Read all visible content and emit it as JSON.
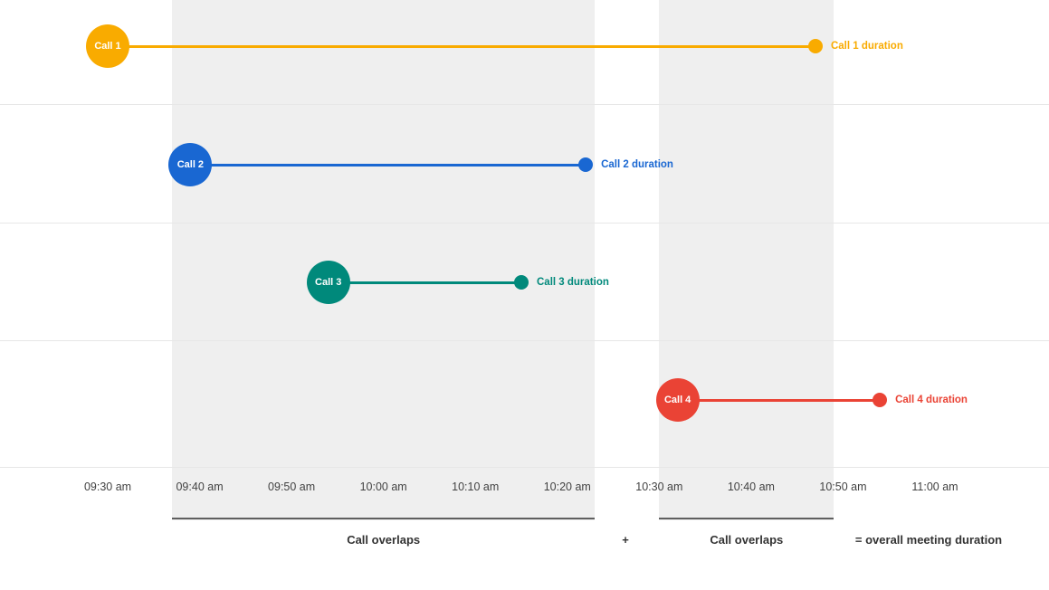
{
  "chart_data": {
    "type": "timeline",
    "x_axis": {
      "ticks": [
        "09:30 am",
        "09:40 am",
        "09:50 am",
        "10:00 am",
        "10:10 am",
        "10:20 am",
        "10:30 am",
        "10:40 am",
        "10:50 am",
        "11:00 am"
      ],
      "range": [
        "09:30 am",
        "11:00 am"
      ],
      "tick_interval_min": 10
    },
    "calls": [
      {
        "name": "Call 1",
        "duration_label": "Call 1 duration",
        "start": "09:30 am",
        "end": "10:47 am",
        "color": "#F9AB00"
      },
      {
        "name": "Call 2",
        "duration_label": "Call 2 duration",
        "start": "09:39 am",
        "end": "10:22 am",
        "color": "#1967D2"
      },
      {
        "name": "Call 3",
        "duration_label": "Call 3 duration",
        "start": "09:54 am",
        "end": "10:15 am",
        "color": "#00897B"
      },
      {
        "name": "Call 4",
        "duration_label": "Call 4 duration",
        "start": "10:32 am",
        "end": "10:54 am",
        "color": "#EA4335"
      }
    ],
    "overlap_regions": [
      {
        "label": "Call overlaps",
        "start": "09:37 am",
        "end": "10:23 am"
      },
      {
        "label": "Call overlaps",
        "start": "10:30 am",
        "end": "10:49 am"
      }
    ],
    "plus_label": "+",
    "overall_label": "= overall meeting duration",
    "colors": {
      "region_fill": "#EFEFEF",
      "gridline": "#E7E7E7",
      "underline": "#5F5F5F",
      "tick_text": "#424242",
      "bottom_text": "#333333"
    },
    "legend_position": "none",
    "grid": true
  }
}
